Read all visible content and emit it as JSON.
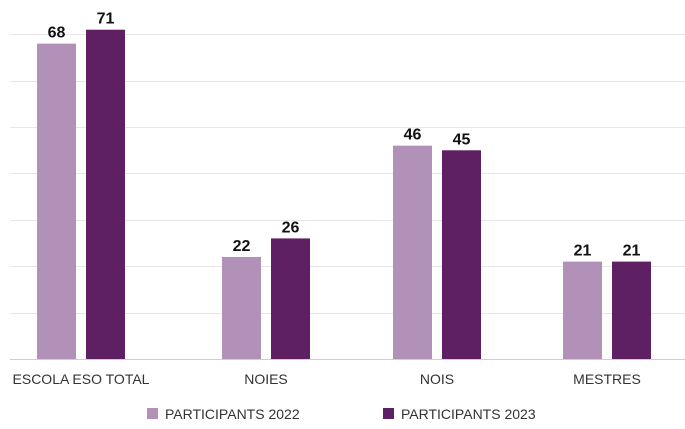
{
  "chart_data": {
    "type": "bar",
    "categories": [
      "ESCOLA ESO TOTAL",
      "NOIES",
      "NOIS",
      "MESTRES"
    ],
    "series": [
      {
        "name": "PARTICIPANTS 2022",
        "values": [
          68,
          22,
          46,
          21
        ],
        "color": "#b191b7"
      },
      {
        "name": "PARTICIPANTS 2023",
        "values": [
          71,
          26,
          45,
          21
        ],
        "color": "#5f1f63"
      }
    ],
    "ylim": [
      0,
      70
    ],
    "grid": true,
    "legend_position": "bottom",
    "value_labels": true
  }
}
